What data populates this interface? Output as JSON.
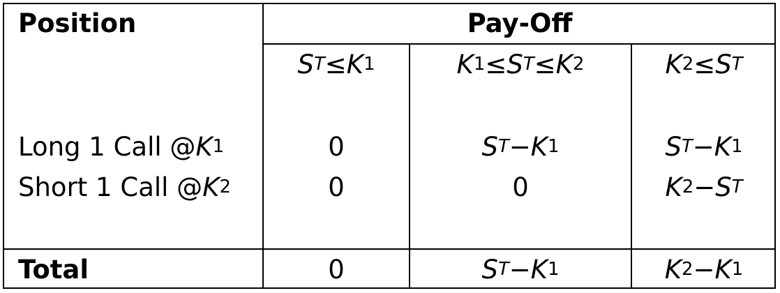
{
  "table": {
    "header": {
      "position": "Position",
      "payoff": "Pay-Off"
    },
    "conditions": [
      {
        "a": "S",
        "a_sub": "T",
        "op1": " ≤ ",
        "b": "K",
        "b_sub": "1"
      },
      {
        "a": "K",
        "a_sub": "1",
        "op1": " ≤ ",
        "b": "S",
        "b_sub": "T",
        "op2": " ≤ ",
        "c": "K",
        "c_sub": "2"
      },
      {
        "a": "K",
        "a_sub": "2",
        "op1": " ≤ ",
        "b": "S",
        "b_sub": "T"
      }
    ],
    "rows": [
      {
        "label_prefix": "Long 1 Call @ ",
        "label_var": "K",
        "label_sub": "1",
        "c1": "0",
        "c2": {
          "a": "S",
          "a_sub": "T",
          "op": " − ",
          "b": "K",
          "b_sub": "1"
        },
        "c3": {
          "a": "S",
          "a_sub": "T",
          "op": " − ",
          "b": "K",
          "b_sub": "1"
        }
      },
      {
        "label_prefix": "Short 1 Call @ ",
        "label_var": "K",
        "label_sub": "2",
        "c1": "0",
        "c2_plain": "0",
        "c3": {
          "a": "K",
          "a_sub": "2",
          "op": " − ",
          "b": "S",
          "b_sub": "T"
        }
      }
    ],
    "total": {
      "label": "Total",
      "c1": "0",
      "c2": {
        "a": "S",
        "a_sub": "T",
        "op": " − ",
        "b": "K",
        "b_sub": "1"
      },
      "c3": {
        "a": "K",
        "a_sub": "2",
        "op": " − ",
        "b": "K",
        "b_sub": "1"
      }
    }
  }
}
